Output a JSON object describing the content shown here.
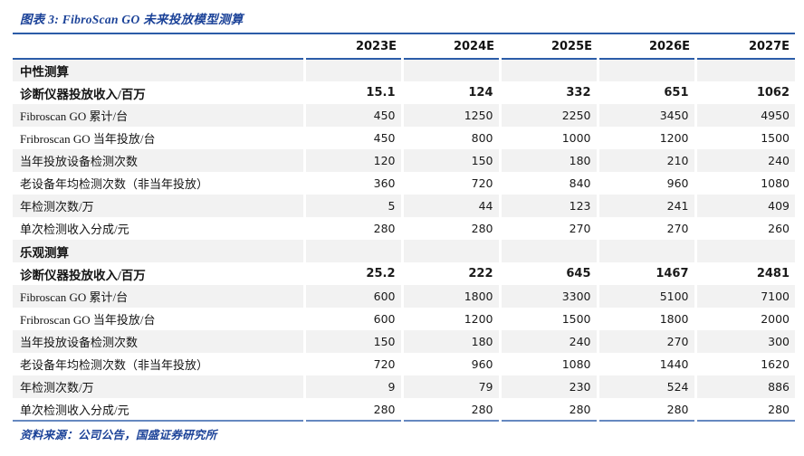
{
  "figure": {
    "title": "图表 3: FibroScan GO 未来投放模型测算",
    "source": "资料来源：公司公告，国盛证券研究所"
  },
  "colors": {
    "title_blue": "#1b4298",
    "border_blue": "#2b5ca8",
    "border_blue_light": "#6688c0",
    "row_stripe": "#f2f2f2"
  },
  "chart_data": {
    "type": "table",
    "title": "FibroScan GO 未来投放模型测算",
    "columns": [
      "",
      "2023E",
      "2024E",
      "2025E",
      "2026E",
      "2027E"
    ],
    "rows": [
      {
        "label": "中性测算",
        "section": true,
        "values": [
          "",
          "",
          "",
          "",
          ""
        ]
      },
      {
        "label": "诊断仪器投放收入/百万",
        "bold": true,
        "values": [
          "15.1",
          "124",
          "332",
          "651",
          "1062"
        ]
      },
      {
        "label": "Fibroscan GO 累计/台",
        "values": [
          "450",
          "1250",
          "2250",
          "3450",
          "4950"
        ]
      },
      {
        "label": "Fribroscan GO 当年投放/台",
        "values": [
          "450",
          "800",
          "1000",
          "1200",
          "1500"
        ]
      },
      {
        "label": "当年投放设备检测次数",
        "values": [
          "120",
          "150",
          "180",
          "210",
          "240"
        ]
      },
      {
        "label": "老设备年均检测次数（非当年投放）",
        "values": [
          "360",
          "720",
          "840",
          "960",
          "1080"
        ]
      },
      {
        "label": "年检测次数/万",
        "values": [
          "5",
          "44",
          "123",
          "241",
          "409"
        ]
      },
      {
        "label": "单次检测收入分成/元",
        "values": [
          "280",
          "280",
          "270",
          "270",
          "260"
        ]
      },
      {
        "label": "乐观测算",
        "section": true,
        "values": [
          "",
          "",
          "",
          "",
          ""
        ]
      },
      {
        "label": "诊断仪器投放收入/百万",
        "bold": true,
        "values": [
          "25.2",
          "222",
          "645",
          "1467",
          "2481"
        ]
      },
      {
        "label": "Fibroscan GO 累计/台",
        "values": [
          "600",
          "1800",
          "3300",
          "5100",
          "7100"
        ]
      },
      {
        "label": "Fribroscan GO 当年投放/台",
        "values": [
          "600",
          "1200",
          "1500",
          "1800",
          "2000"
        ]
      },
      {
        "label": "当年投放设备检测次数",
        "values": [
          "150",
          "180",
          "240",
          "270",
          "300"
        ]
      },
      {
        "label": "老设备年均检测次数（非当年投放）",
        "values": [
          "720",
          "960",
          "1080",
          "1440",
          "1620"
        ]
      },
      {
        "label": "年检测次数/万",
        "values": [
          "9",
          "79",
          "230",
          "524",
          "886"
        ]
      },
      {
        "label": "单次检测收入分成/元",
        "values": [
          "280",
          "280",
          "280",
          "280",
          "280"
        ]
      }
    ]
  }
}
